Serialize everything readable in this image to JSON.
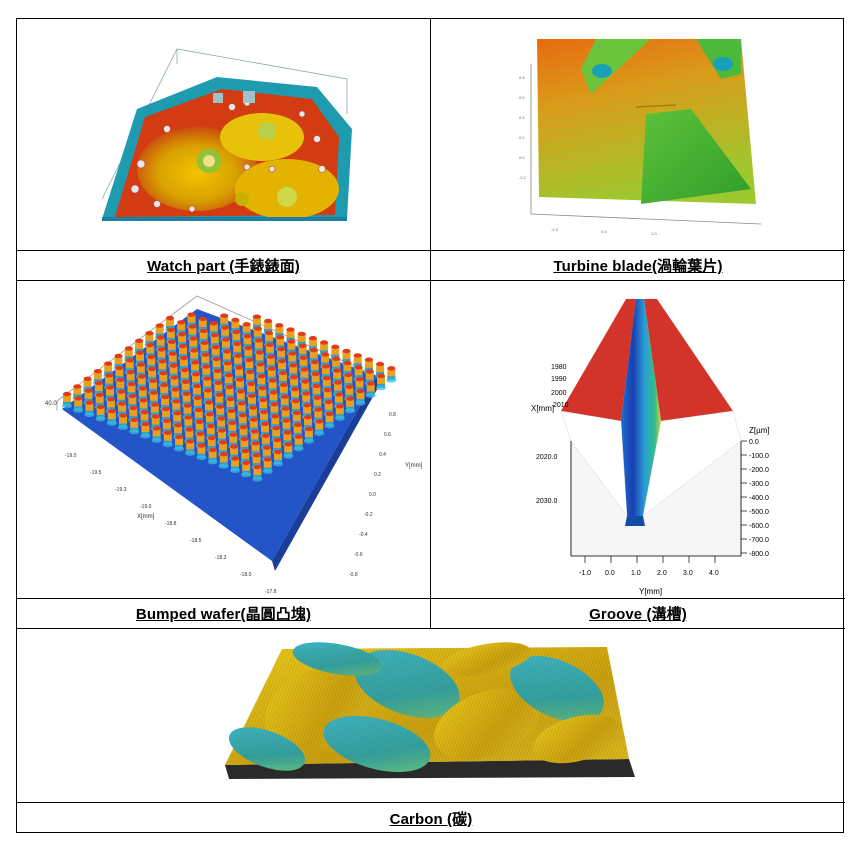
{
  "captions": {
    "watch": "Watch part (手錶錶面)",
    "turbine": "Turbine blade(渦輪葉片)",
    "wafer": "Bumped wafer(晶圓凸塊)",
    "groove": "Groove (溝槽)",
    "carbon": "Carbon (碳)"
  },
  "wafer_axes": {
    "x_label": "X[mm]",
    "y_label": "Y[mm]",
    "x_ticks": [
      "-19.0",
      "-19.5",
      "-19.3",
      "-19.0",
      "-18.8",
      "-18.5",
      "-18.3",
      "-18.0",
      "-17.8"
    ],
    "y_ticks": [
      "0.8",
      "0.6",
      "0.4",
      "0.2",
      "0.0",
      "-0.2",
      "-0.4",
      "-0.6",
      "-0.8"
    ],
    "z_top": "40.0"
  },
  "groove_axes": {
    "x_label": "X[mm]",
    "y_label": "Y[mm]",
    "z_label": "Z[µm]",
    "x_ticks": [
      "1980",
      "1990",
      "2000",
      "2010",
      "2020.0",
      "2030.0"
    ],
    "y_ticks": [
      "-1.0",
      "0.0",
      "1.0",
      "2.0",
      "3.0",
      "4.0"
    ],
    "z_ticks": [
      "0.0",
      "-100.0",
      "-200.0",
      "-300.0",
      "-400.0",
      "-500.0",
      "-600.0",
      "-700.0",
      "-800.0"
    ]
  }
}
